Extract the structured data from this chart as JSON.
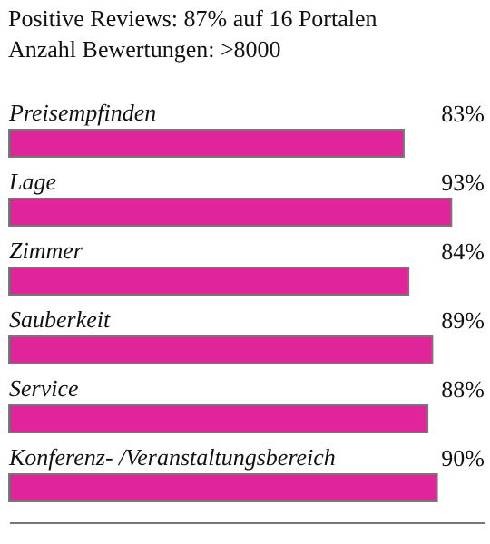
{
  "chart_data": {
    "type": "bar",
    "orientation": "horizontal",
    "title": "Positive Reviews: 87% auf 16 Portalen",
    "subtitle": "Anzahl Bewertungen: >8000",
    "categories": [
      "Preisempfinden",
      "Lage",
      "Zimmer",
      "Sauberkeit",
      "Service",
      "Konferenz- /Veranstaltungsbereich"
    ],
    "values": [
      83,
      93,
      84,
      89,
      88,
      90
    ],
    "value_labels": [
      "83%",
      "93%",
      "84%",
      "89%",
      "88%",
      "90%"
    ],
    "color": "#e0259a",
    "xlim": [
      0,
      100
    ],
    "tick_labels": "y"
  }
}
